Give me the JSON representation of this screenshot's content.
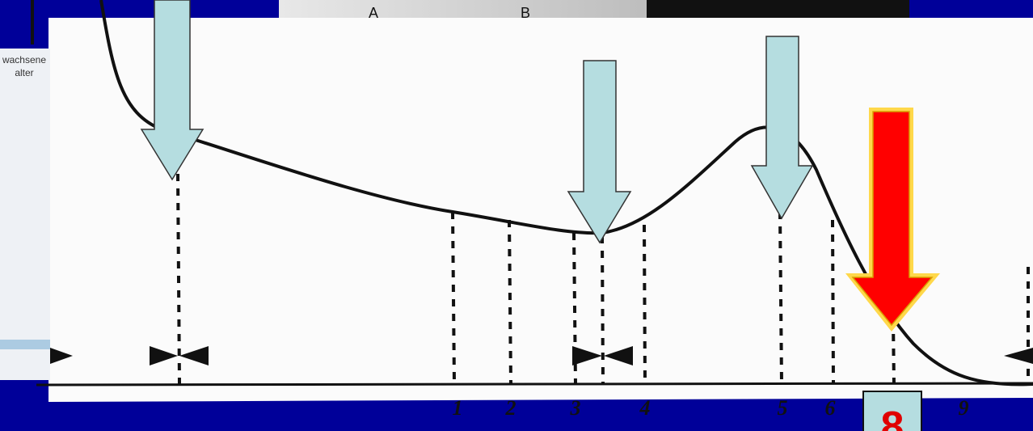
{
  "top_strip": {
    "left_label": "A",
    "right_label": "B"
  },
  "inset": {
    "line_1": "wachsene",
    "line_2": "alter"
  },
  "axis_labels": [
    "1",
    "2",
    "3",
    "4",
    "5",
    "6",
    "9"
  ],
  "highlight_label": "8"
}
